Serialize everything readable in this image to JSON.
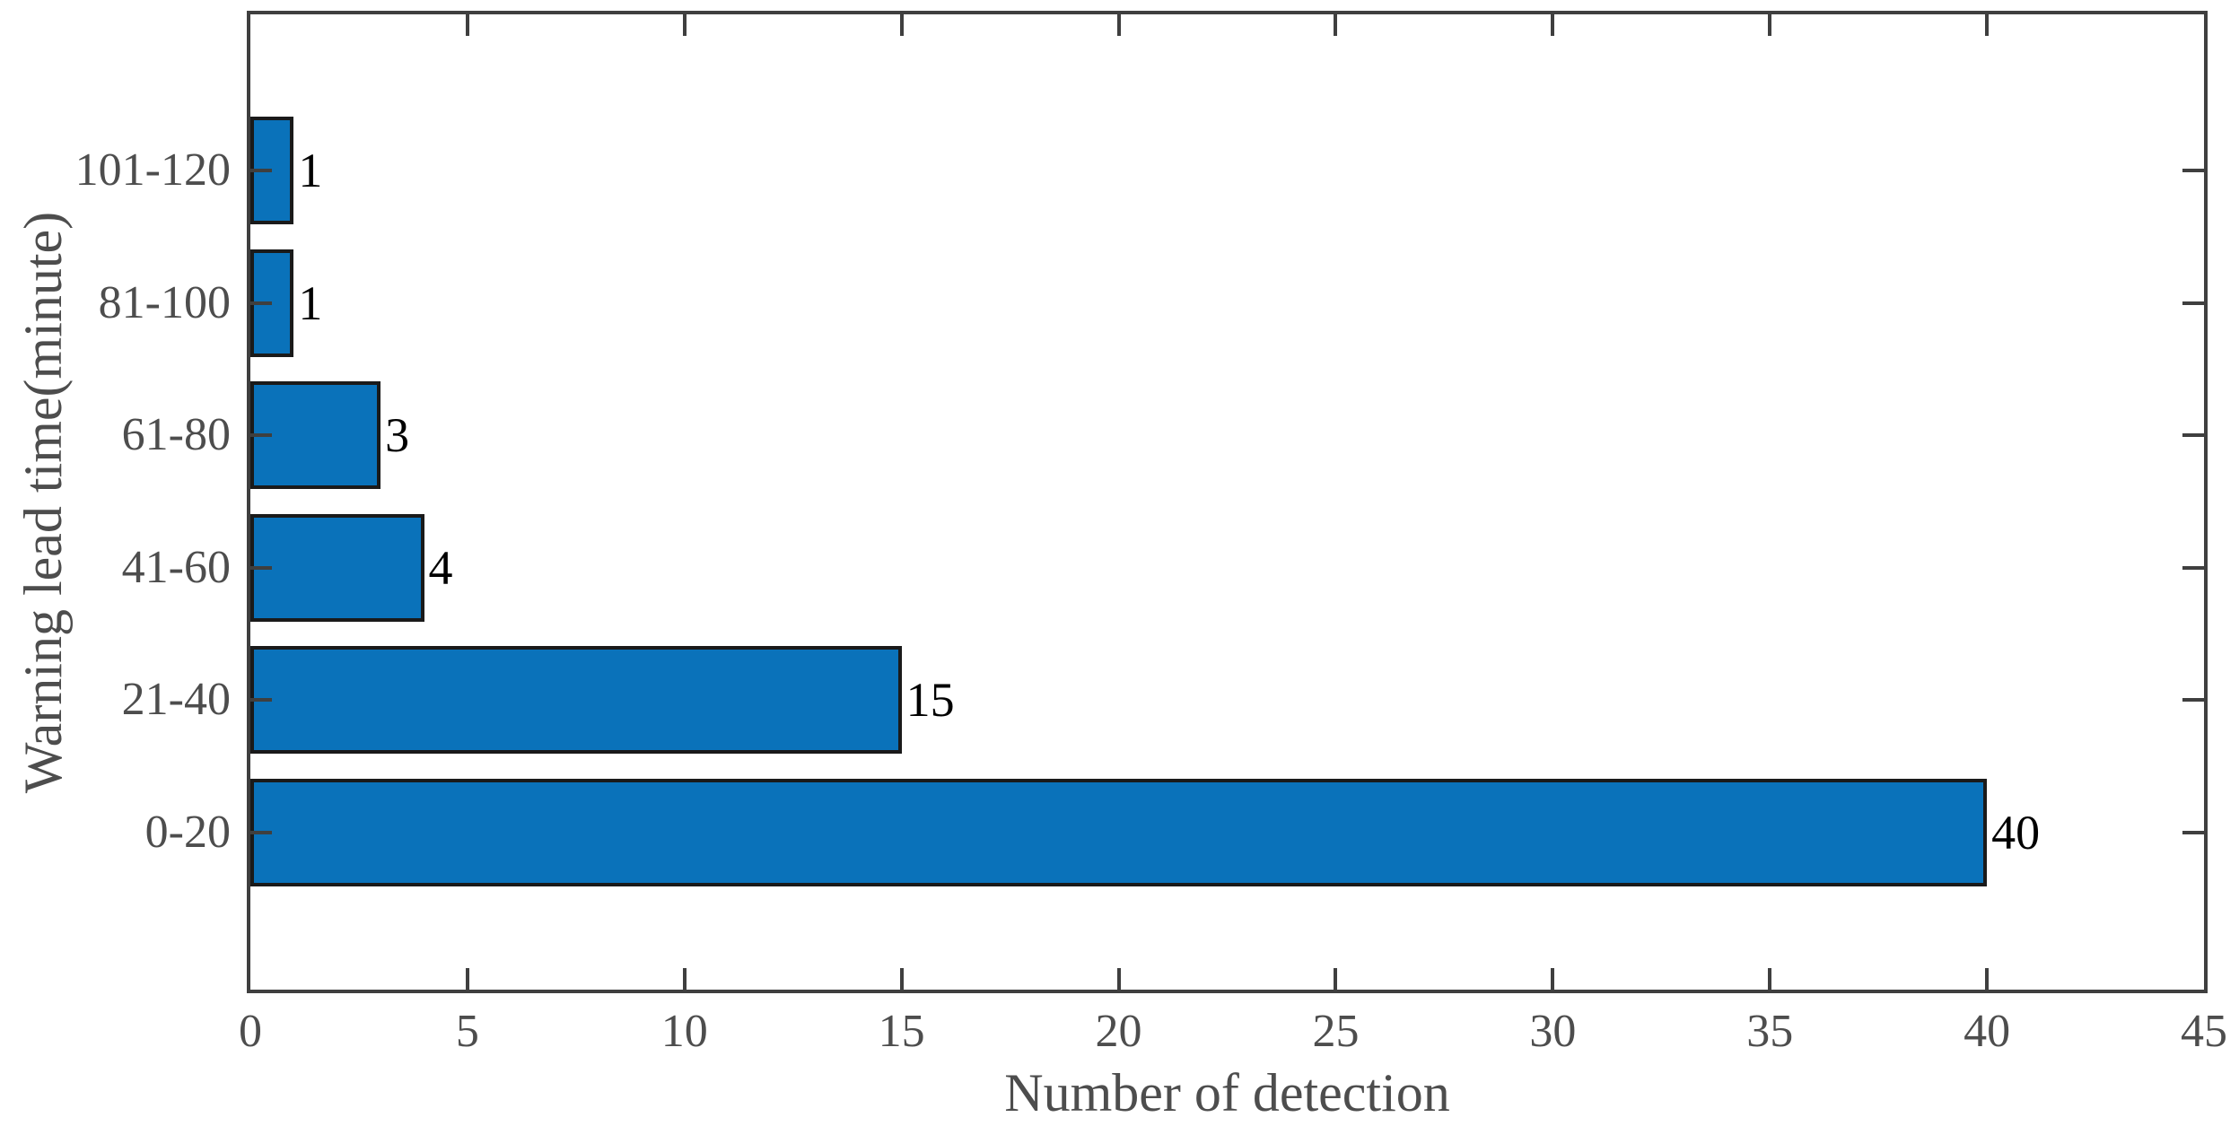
{
  "chart_data": {
    "type": "bar",
    "orientation": "horizontal",
    "title": "",
    "xlabel": "Number of detection",
    "ylabel": "Warning lead time(minute)",
    "categories_bottom_to_top": [
      "0-20",
      "21-40",
      "41-60",
      "61-80",
      "81-100",
      "101-120"
    ],
    "values": [
      40,
      15,
      4,
      3,
      1,
      1
    ],
    "value_labels": [
      "40",
      "15",
      "4",
      "3",
      "1",
      "1"
    ],
    "xlim": [
      0,
      45
    ],
    "xticks": [
      0,
      5,
      10,
      15,
      20,
      25,
      30,
      35,
      40,
      45
    ],
    "grid": false,
    "legend": null,
    "colors": {
      "bar_fill": "#0a72ba",
      "bar_edge": "#1a1a1a",
      "axis_box": "#3f3f3f",
      "tick_mark": "#3f3f3f",
      "tick_label": "#4d4d4d",
      "axis_title": "#4d4d4d",
      "value_label": "#000000",
      "background": "#ffffff"
    }
  }
}
